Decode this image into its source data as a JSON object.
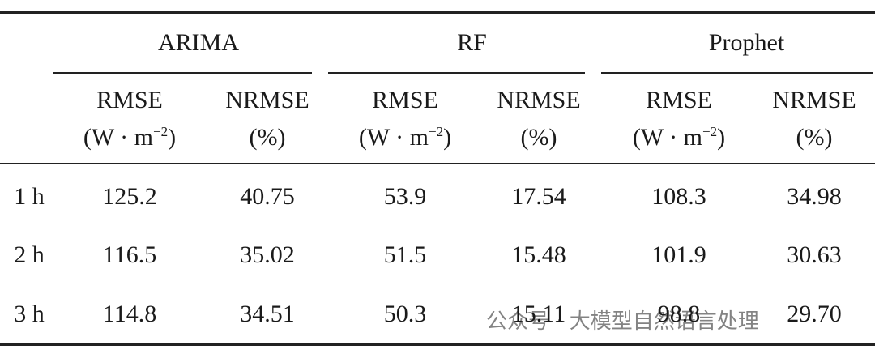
{
  "table": {
    "groups": [
      "ARIMA",
      "RF",
      "Prophet"
    ],
    "columns": [
      {
        "name": "RMSE",
        "unit": {
          "base": "(W · m",
          "sup": "−2",
          "end": ")"
        }
      },
      {
        "name": "NRMSE",
        "unit": {
          "base": "(%)"
        }
      },
      {
        "name": "RMSE",
        "unit": {
          "base": "(W · m",
          "sup": "−2",
          "end": ")"
        }
      },
      {
        "name": "NRMSE",
        "unit": {
          "base": "(%)"
        }
      },
      {
        "name": "RMSE",
        "unit": {
          "base": "(W · m",
          "sup": "−2",
          "end": ")"
        }
      },
      {
        "name": "NRMSE",
        "unit": {
          "base": "(%)"
        }
      }
    ],
    "rows": [
      {
        "label": "1 h",
        "cells": [
          "125.2",
          "40.75",
          "53.9",
          "17.54",
          "108.3",
          "34.98"
        ]
      },
      {
        "label": "2 h",
        "cells": [
          "116.5",
          "35.02",
          "51.5",
          "15.48",
          "101.9",
          "30.63"
        ]
      },
      {
        "label": "3 h",
        "cells": [
          "114.8",
          "34.51",
          "50.3",
          "15.11",
          "98.8",
          "29.70"
        ]
      }
    ]
  },
  "watermark": "公众号 · 大模型自然语言处理"
}
